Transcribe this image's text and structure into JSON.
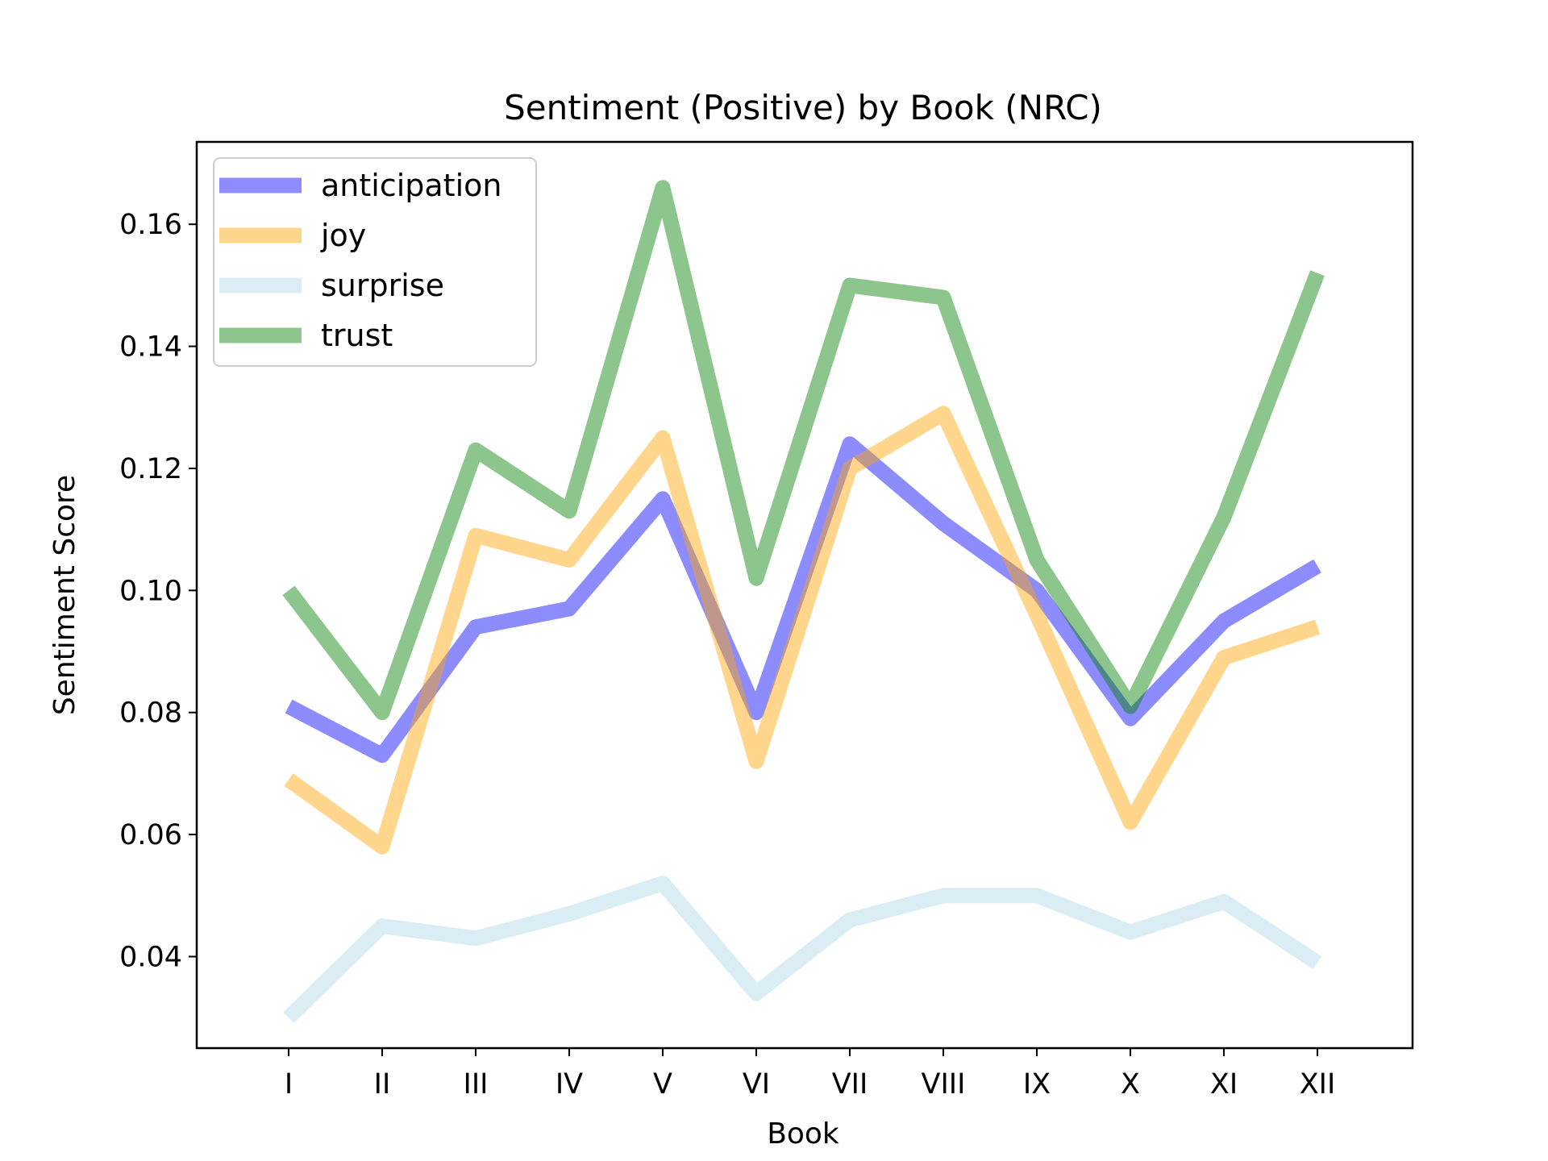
{
  "chart_data": {
    "type": "line",
    "title": "Sentiment (Positive) by Book (NRC)",
    "xlabel": "Book",
    "ylabel": "Sentiment Score",
    "categories": [
      "I",
      "II",
      "III",
      "IV",
      "V",
      "VI",
      "VII",
      "VIII",
      "IX",
      "X",
      "XI",
      "XII"
    ],
    "yticks": [
      0.04,
      0.06,
      0.08,
      0.1,
      0.12,
      0.14,
      0.16
    ],
    "ytick_labels": [
      "0.04",
      "0.06",
      "0.08",
      "0.10",
      "0.12",
      "0.14",
      "0.16"
    ],
    "ylim": [
      0.025,
      0.1735
    ],
    "grid": false,
    "legend_position": "upper-left",
    "series": [
      {
        "name": "anticipation",
        "color": "#0000ff",
        "opacity": 0.45,
        "values": [
          0.081,
          0.073,
          0.094,
          0.097,
          0.115,
          0.08,
          0.124,
          0.111,
          0.1,
          0.079,
          0.095,
          0.104
        ]
      },
      {
        "name": "joy",
        "color": "#ffa500",
        "opacity": 0.45,
        "values": [
          0.069,
          0.058,
          0.109,
          0.105,
          0.125,
          0.072,
          0.12,
          0.129,
          0.096,
          0.062,
          0.089,
          0.094
        ]
      },
      {
        "name": "surprise",
        "color": "#add8e6",
        "opacity": 0.45,
        "values": [
          0.03,
          0.045,
          0.043,
          0.047,
          0.052,
          0.034,
          0.046,
          0.05,
          0.05,
          0.044,
          0.049,
          0.039
        ]
      },
      {
        "name": "trust",
        "color": "#008000",
        "opacity": 0.45,
        "values": [
          0.1,
          0.08,
          0.123,
          0.113,
          0.166,
          0.102,
          0.15,
          0.148,
          0.105,
          0.081,
          0.112,
          0.152
        ]
      }
    ]
  }
}
